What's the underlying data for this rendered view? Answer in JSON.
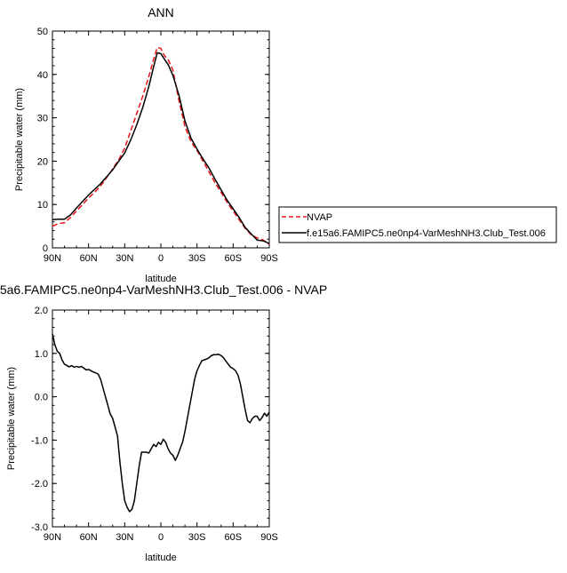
{
  "chart_data": [
    {
      "type": "line",
      "title": "ANN",
      "xlabel": "latitude",
      "ylabel": "Precipitable water (mm)",
      "xlim": [
        90,
        -90
      ],
      "ylim": [
        0,
        50
      ],
      "x_ticks": [
        90,
        60,
        30,
        0,
        -30,
        -60,
        -90
      ],
      "x_tick_labels": [
        "90N",
        "60N",
        "30N",
        "0",
        "30S",
        "60S",
        "90S"
      ],
      "y_ticks": [
        0,
        10,
        20,
        30,
        40,
        50
      ],
      "y_tick_labels": [
        "0",
        "10",
        "20",
        "30",
        "40",
        "50"
      ],
      "legend": "outside-right",
      "series": [
        {
          "name": "NVAP",
          "color": "#e8141a",
          "dash": "dashed",
          "points": [
            [
              90,
              5.0
            ],
            [
              85,
              5.6
            ],
            [
              80,
              5.8
            ],
            [
              75,
              7.0
            ],
            [
              70,
              8.5
            ],
            [
              65,
              10.0
            ],
            [
              60,
              11.5
            ],
            [
              55,
              12.8
            ],
            [
              50,
              14.3
            ],
            [
              45,
              16.2
            ],
            [
              40,
              18.2
            ],
            [
              35,
              20.3
            ],
            [
              30,
              23.0
            ],
            [
              25,
              27.0
            ],
            [
              20,
              31.0
            ],
            [
              15,
              35.0
            ],
            [
              10,
              39.5
            ],
            [
              6,
              43.5
            ],
            [
              3,
              46.2
            ],
            [
              0,
              46.0
            ],
            [
              -3,
              44.3
            ],
            [
              -6,
              43.5
            ],
            [
              -10,
              41.0
            ],
            [
              -15,
              34.0
            ],
            [
              -20,
              28.0
            ],
            [
              -25,
              24.5
            ],
            [
              -30,
              22.5
            ],
            [
              -35,
              20.0
            ],
            [
              -40,
              17.5
            ],
            [
              -45,
              15.0
            ],
            [
              -50,
              12.8
            ],
            [
              -55,
              10.5
            ],
            [
              -60,
              8.5
            ],
            [
              -65,
              6.5
            ],
            [
              -70,
              4.5
            ],
            [
              -75,
              3.0
            ],
            [
              -80,
              2.3
            ],
            [
              -85,
              1.8
            ],
            [
              -90,
              0.8
            ]
          ]
        },
        {
          "name": "f.e15a6.FAMIPC5.ne0np4-VarMeshNH3.Club_Test.006",
          "color": "#000000",
          "dash": "solid",
          "points": [
            [
              90,
              6.5
            ],
            [
              85,
              6.6
            ],
            [
              80,
              6.6
            ],
            [
              75,
              7.6
            ],
            [
              70,
              9.2
            ],
            [
              65,
              10.7
            ],
            [
              60,
              12.2
            ],
            [
              55,
              13.5
            ],
            [
              50,
              14.8
            ],
            [
              45,
              16.4
            ],
            [
              40,
              18.0
            ],
            [
              35,
              20.0
            ],
            [
              30,
              21.9
            ],
            [
              25,
              24.9
            ],
            [
              20,
              28.4
            ],
            [
              15,
              32.4
            ],
            [
              10,
              37.2
            ],
            [
              6,
              41.8
            ],
            [
              3,
              45.0
            ],
            [
              0,
              44.8
            ],
            [
              -3,
              43.5
            ],
            [
              -6,
              42.3
            ],
            [
              -10,
              39.8
            ],
            [
              -15,
              35.2
            ],
            [
              -20,
              29.3
            ],
            [
              -25,
              25.3
            ],
            [
              -30,
              22.8
            ],
            [
              -35,
              20.5
            ],
            [
              -40,
              18.4
            ],
            [
              -45,
              15.8
            ],
            [
              -50,
              13.4
            ],
            [
              -55,
              11.0
            ],
            [
              -60,
              9.0
            ],
            [
              -65,
              7.0
            ],
            [
              -70,
              4.7
            ],
            [
              -75,
              3.2
            ],
            [
              -80,
              1.8
            ],
            [
              -85,
              1.6
            ],
            [
              -90,
              1.0
            ]
          ]
        }
      ]
    },
    {
      "type": "line",
      "title": "5a6.FAMIPC5.ne0np4-VarMeshNH3.Club_Test.006 - NVAP",
      "xlabel": "latitude",
      "ylabel": "Precipitable water (mm)",
      "xlim": [
        90,
        -90
      ],
      "ylim": [
        -3.0,
        2.0
      ],
      "x_ticks": [
        90,
        60,
        30,
        0,
        -30,
        -60,
        -90
      ],
      "x_tick_labels": [
        "90N",
        "60N",
        "30N",
        "0",
        "30S",
        "60S",
        "90S"
      ],
      "y_ticks": [
        -3.0,
        -2.0,
        -1.0,
        0.0,
        1.0,
        2.0
      ],
      "y_tick_labels": [
        "-3.0",
        "-2.0",
        "-1.0",
        "0.0",
        "1.0",
        "2.0"
      ],
      "series": [
        {
          "color": "#000000",
          "dash": "solid",
          "points": [
            [
              90,
              1.45
            ],
            [
              88,
              1.2
            ],
            [
              86,
              1.05
            ],
            [
              84,
              1.0
            ],
            [
              82,
              0.85
            ],
            [
              80,
              0.75
            ],
            [
              78,
              0.72
            ],
            [
              76,
              0.69
            ],
            [
              74,
              0.72
            ],
            [
              72,
              0.68
            ],
            [
              70,
              0.7
            ],
            [
              68,
              0.68
            ],
            [
              66,
              0.7
            ],
            [
              64,
              0.66
            ],
            [
              62,
              0.62
            ],
            [
              60,
              0.63
            ],
            [
              58,
              0.6
            ],
            [
              56,
              0.57
            ],
            [
              54,
              0.55
            ],
            [
              52,
              0.52
            ],
            [
              50,
              0.4
            ],
            [
              48,
              0.2
            ],
            [
              46,
              0.0
            ],
            [
              44,
              -0.2
            ],
            [
              42,
              -0.4
            ],
            [
              40,
              -0.5
            ],
            [
              38,
              -0.7
            ],
            [
              36,
              -0.9
            ],
            [
              34,
              -1.5
            ],
            [
              32,
              -2.0
            ],
            [
              30,
              -2.4
            ],
            [
              28,
              -2.55
            ],
            [
              26,
              -2.65
            ],
            [
              24,
              -2.6
            ],
            [
              22,
              -2.4
            ],
            [
              20,
              -2.0
            ],
            [
              18,
              -1.6
            ],
            [
              16,
              -1.28
            ],
            [
              12,
              -1.28
            ],
            [
              10,
              -1.3
            ],
            [
              8,
              -1.2
            ],
            [
              6,
              -1.1
            ],
            [
              4,
              -1.15
            ],
            [
              2,
              -1.05
            ],
            [
              0,
              -1.1
            ],
            [
              -2,
              -0.98
            ],
            [
              -4,
              -1.05
            ],
            [
              -6,
              -1.2
            ],
            [
              -8,
              -1.3
            ],
            [
              -10,
              -1.35
            ],
            [
              -12,
              -1.47
            ],
            [
              -14,
              -1.35
            ],
            [
              -16,
              -1.2
            ],
            [
              -18,
              -1.05
            ],
            [
              -20,
              -0.8
            ],
            [
              -22,
              -0.5
            ],
            [
              -24,
              -0.2
            ],
            [
              -26,
              0.1
            ],
            [
              -28,
              0.4
            ],
            [
              -30,
              0.6
            ],
            [
              -32,
              0.72
            ],
            [
              -34,
              0.83
            ],
            [
              -36,
              0.85
            ],
            [
              -38,
              0.87
            ],
            [
              -40,
              0.9
            ],
            [
              -42,
              0.95
            ],
            [
              -44,
              0.97
            ],
            [
              -46,
              0.97
            ],
            [
              -48,
              0.98
            ],
            [
              -50,
              0.95
            ],
            [
              -52,
              0.9
            ],
            [
              -54,
              0.82
            ],
            [
              -56,
              0.75
            ],
            [
              -58,
              0.68
            ],
            [
              -60,
              0.65
            ],
            [
              -62,
              0.6
            ],
            [
              -64,
              0.5
            ],
            [
              -66,
              0.3
            ],
            [
              -68,
              0.0
            ],
            [
              -70,
              -0.3
            ],
            [
              -72,
              -0.55
            ],
            [
              -74,
              -0.6
            ],
            [
              -76,
              -0.5
            ],
            [
              -78,
              -0.45
            ],
            [
              -80,
              -0.45
            ],
            [
              -82,
              -0.55
            ],
            [
              -84,
              -0.48
            ],
            [
              -86,
              -0.38
            ],
            [
              -88,
              -0.45
            ],
            [
              -90,
              -0.35
            ]
          ]
        }
      ]
    }
  ]
}
